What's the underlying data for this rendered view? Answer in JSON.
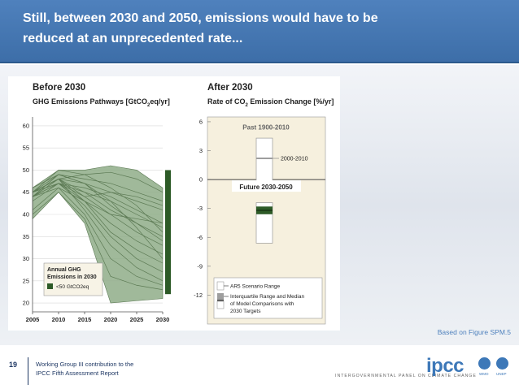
{
  "slide": {
    "title_line1": "Still, between 2030 and 2050, emissions would have to be",
    "title_line2": "reduced at an unprecedented rate...",
    "based_on": "Based on Figure SPM.5",
    "page_number": "19",
    "footer_line1": "Working Group III contribution to the",
    "footer_line2": "IPCC Fifth Assessment Report",
    "logo_text": "ipcc",
    "logo_tagline": "INTERGOVERNMENTAL PANEL ON CLIMATE CHANGE",
    "wmo_label": "WMO",
    "unep_label": "UNEP"
  },
  "colors": {
    "title_bar": "#4f81bd",
    "range_fill": "#8fad88",
    "range_line": "#5c7a54",
    "dark_green": "#2d5a27",
    "gray_box": "#9e9e9e",
    "panel_bg": "#f6f0de"
  },
  "chart_data": [
    {
      "type": "area",
      "title": "Before 2030",
      "subtitle": "GHG Emissions Pathways [GtCO2eq/yr]",
      "x_ticks": [
        "2005",
        "2010",
        "2015",
        "2020",
        "2025",
        "2030"
      ],
      "y_ticks": [
        "20",
        "25",
        "30",
        "35",
        "40",
        "45",
        "50",
        "55",
        "60"
      ],
      "xlim": [
        2005,
        2030
      ],
      "ylim": [
        18,
        62
      ],
      "range_upper": [
        [
          2005,
          46
        ],
        [
          2010,
          50
        ],
        [
          2015,
          50
        ],
        [
          2020,
          51
        ],
        [
          2025,
          50
        ],
        [
          2030,
          46
        ]
      ],
      "range_lower": [
        [
          2005,
          39
        ],
        [
          2010,
          45
        ],
        [
          2015,
          38
        ],
        [
          2020,
          20
        ],
        [
          2025,
          20.5
        ],
        [
          2030,
          21
        ]
      ],
      "pathways": [
        [
          [
            2005,
            45
          ],
          [
            2010,
            48
          ],
          [
            2015,
            49
          ],
          [
            2020,
            49.5
          ],
          [
            2025,
            48
          ],
          [
            2030,
            45
          ]
        ],
        [
          [
            2005,
            45
          ],
          [
            2010,
            49
          ],
          [
            2015,
            48
          ],
          [
            2020,
            47
          ],
          [
            2025,
            45
          ],
          [
            2030,
            43
          ]
        ],
        [
          [
            2005,
            44
          ],
          [
            2010,
            48
          ],
          [
            2015,
            47
          ],
          [
            2020,
            45
          ],
          [
            2025,
            43
          ],
          [
            2030,
            41
          ]
        ],
        [
          [
            2005,
            45
          ],
          [
            2010,
            47
          ],
          [
            2015,
            46
          ],
          [
            2020,
            44
          ],
          [
            2025,
            41
          ],
          [
            2030,
            38
          ]
        ],
        [
          [
            2005,
            44
          ],
          [
            2010,
            48
          ],
          [
            2015,
            45
          ],
          [
            2020,
            43
          ],
          [
            2025,
            40
          ],
          [
            2030,
            37
          ]
        ],
        [
          [
            2005,
            45
          ],
          [
            2010,
            47
          ],
          [
            2015,
            45
          ],
          [
            2020,
            41
          ],
          [
            2025,
            38
          ],
          [
            2030,
            35
          ]
        ],
        [
          [
            2005,
            44
          ],
          [
            2010,
            49
          ],
          [
            2015,
            47
          ],
          [
            2020,
            42
          ],
          [
            2025,
            38
          ],
          [
            2030,
            34
          ]
        ],
        [
          [
            2005,
            45
          ],
          [
            2010,
            48
          ],
          [
            2015,
            44
          ],
          [
            2020,
            40
          ],
          [
            2025,
            36
          ],
          [
            2030,
            33
          ]
        ],
        [
          [
            2005,
            44
          ],
          [
            2010,
            47
          ],
          [
            2015,
            43
          ],
          [
            2020,
            38
          ],
          [
            2025,
            34
          ],
          [
            2030,
            31
          ]
        ],
        [
          [
            2005,
            45
          ],
          [
            2010,
            48
          ],
          [
            2015,
            43
          ],
          [
            2020,
            36
          ],
          [
            2025,
            32
          ],
          [
            2030,
            29
          ]
        ],
        [
          [
            2005,
            44
          ],
          [
            2010,
            47
          ],
          [
            2015,
            42
          ],
          [
            2020,
            35
          ],
          [
            2025,
            30
          ],
          [
            2030,
            27
          ]
        ],
        [
          [
            2005,
            45
          ],
          [
            2010,
            48
          ],
          [
            2015,
            41
          ],
          [
            2020,
            33
          ],
          [
            2025,
            28
          ],
          [
            2030,
            25
          ]
        ],
        [
          [
            2005,
            44
          ],
          [
            2010,
            46
          ],
          [
            2015,
            40
          ],
          [
            2020,
            30
          ],
          [
            2025,
            26
          ],
          [
            2030,
            24
          ]
        ],
        [
          [
            2005,
            43
          ],
          [
            2010,
            47
          ],
          [
            2015,
            44
          ],
          [
            2020,
            45
          ],
          [
            2025,
            44
          ],
          [
            2030,
            42
          ]
        ],
        [
          [
            2005,
            41
          ],
          [
            2010,
            46
          ],
          [
            2015,
            43
          ],
          [
            2020,
            40
          ],
          [
            2025,
            39
          ],
          [
            2030,
            38
          ]
        ],
        [
          [
            2005,
            40
          ],
          [
            2010,
            45
          ],
          [
            2015,
            39
          ],
          [
            2020,
            26
          ],
          [
            2025,
            24
          ],
          [
            2030,
            23
          ]
        ],
        [
          [
            2005,
            45
          ],
          [
            2010,
            50
          ],
          [
            2015,
            49
          ],
          [
            2020,
            46
          ],
          [
            2025,
            42
          ],
          [
            2030,
            36
          ]
        ],
        [
          [
            2005,
            46
          ],
          [
            2010,
            49
          ],
          [
            2015,
            47
          ],
          [
            2020,
            43
          ],
          [
            2025,
            37
          ],
          [
            2030,
            30
          ]
        ]
      ],
      "bar": {
        "low": 22,
        "high": 50
      },
      "legend": {
        "title_line1": "Annual GHG",
        "title_line2": "Emissions in 2030",
        "item": "<50 GtCO2eq"
      }
    },
    {
      "type": "box",
      "title": "After 2030",
      "subtitle": "Rate of CO2 Emission Change [%/yr]",
      "y_ticks": [
        "6",
        "3",
        "0",
        "-3",
        "-6",
        "-9",
        "-12"
      ],
      "ylim": [
        -15,
        6.5
      ],
      "past": {
        "label": "Past 1900-2010",
        "low": -0.3,
        "high": 4.3,
        "median": 2.2,
        "median_label": "2000-2010"
      },
      "future": {
        "label": "Future 2030-2050",
        "low": -6.6,
        "high": -2.4,
        "iqr_low": -3.6,
        "iqr_high": -2.8,
        "median": -3.2
      },
      "legend": {
        "item1": "AR5 Scenario Range",
        "item2_line1": "Interquartile Range and Median",
        "item2_line2": "of Model Comparisons with",
        "item2_line3": "2030 Targets"
      }
    }
  ]
}
